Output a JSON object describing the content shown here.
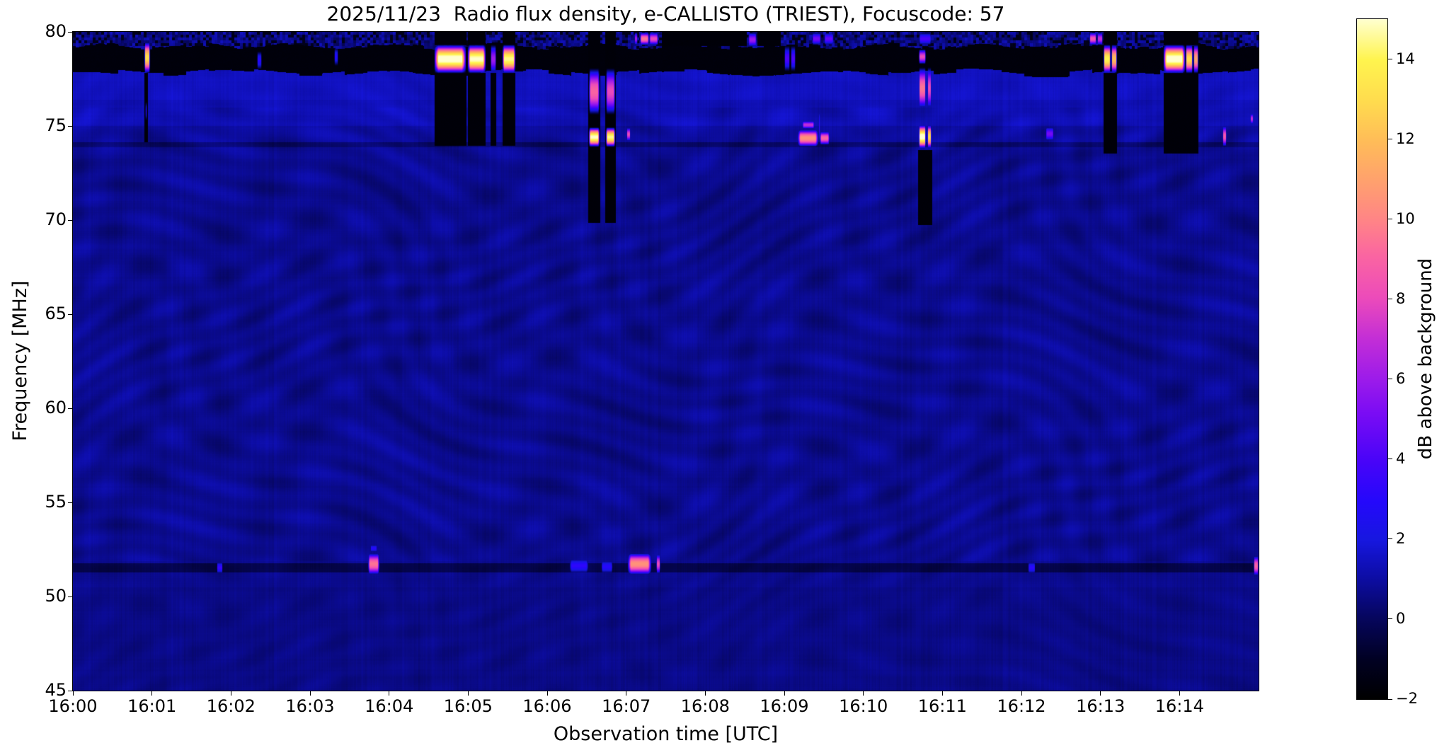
{
  "title": "2025/11/23  Radio flux density, e-CALLISTO (TRIEST), Focuscode: 57",
  "chart_data": {
    "type": "heatmap",
    "title": "2025/11/23  Radio flux density, e-CALLISTO (TRIEST), Focuscode: 57",
    "xlabel": "Observation time [UTC]",
    "ylabel": "Frequency [MHz]",
    "colorbar_label": "dB above background",
    "x_range_utc": [
      "16:00",
      "16:15"
    ],
    "x_range_minutes": [
      0,
      15
    ],
    "freq_range_mhz": [
      45,
      80
    ],
    "value_range_db": [
      -2,
      15
    ],
    "x_ticks": [
      {
        "min": 0,
        "label": "16:00"
      },
      {
        "min": 1,
        "label": "16:01"
      },
      {
        "min": 2,
        "label": "16:02"
      },
      {
        "min": 3,
        "label": "16:03"
      },
      {
        "min": 4,
        "label": "16:04"
      },
      {
        "min": 5,
        "label": "16:05"
      },
      {
        "min": 6,
        "label": "16:06"
      },
      {
        "min": 7,
        "label": "16:07"
      },
      {
        "min": 8,
        "label": "16:08"
      },
      {
        "min": 9,
        "label": "16:09"
      },
      {
        "min": 10,
        "label": "16:10"
      },
      {
        "min": 11,
        "label": "16:11"
      },
      {
        "min": 12,
        "label": "16:12"
      },
      {
        "min": 13,
        "label": "16:13"
      },
      {
        "min": 14,
        "label": "16:14"
      }
    ],
    "y_ticks": [
      {
        "v": 80,
        "label": "80"
      },
      {
        "v": 75,
        "label": "75"
      },
      {
        "v": 70,
        "label": "70"
      },
      {
        "v": 65,
        "label": "65"
      },
      {
        "v": 60,
        "label": "60"
      },
      {
        "v": 55,
        "label": "55"
      },
      {
        "v": 50,
        "label": "50"
      },
      {
        "v": 45,
        "label": "45"
      }
    ],
    "colorbar_ticks": [
      {
        "v": 14,
        "label": "14"
      },
      {
        "v": 12,
        "label": "12"
      },
      {
        "v": 10,
        "label": "10"
      },
      {
        "v": 8,
        "label": "8"
      },
      {
        "v": 6,
        "label": "6"
      },
      {
        "v": 4,
        "label": "4"
      },
      {
        "v": 2,
        "label": "2"
      },
      {
        "v": 0,
        "label": "0"
      },
      {
        "v": -2,
        "label": "−2"
      }
    ],
    "colormap": {
      "name": "gnuplot2-like",
      "stops": [
        [
          0.0,
          "#000000"
        ],
        [
          0.06,
          "#010124"
        ],
        [
          0.12,
          "#06065e"
        ],
        [
          0.18,
          "#0d0da6"
        ],
        [
          0.235,
          "#1717e0"
        ],
        [
          0.29,
          "#2408fb"
        ],
        [
          0.353,
          "#4a04f8"
        ],
        [
          0.42,
          "#7a0cf4"
        ],
        [
          0.47,
          "#9c1bea"
        ],
        [
          0.53,
          "#c32ed6"
        ],
        [
          0.59,
          "#ec4bba"
        ],
        [
          0.65,
          "#fa64a2"
        ],
        [
          0.7,
          "#ff8288"
        ],
        [
          0.76,
          "#ffa06e"
        ],
        [
          0.82,
          "#ffbc58"
        ],
        [
          0.88,
          "#ffdc4e"
        ],
        [
          0.94,
          "#fff44e"
        ],
        [
          1.0,
          "#ffffd0"
        ]
      ]
    },
    "background": {
      "base_db": 0.72,
      "black_band_mhz": [
        77.85,
        79.25
      ],
      "black_band_db": -1.75,
      "top_strip_mhz": [
        79.25,
        80
      ],
      "bright_band_mhz": [
        75.0,
        76.4
      ],
      "bright_band_boost_db": 0.55,
      "upper_bright_mhz": [
        76.4,
        77.85
      ],
      "upper_bright_boost_db": 0.75,
      "lower_bright_mhz": [
        74.15,
        75.0
      ],
      "lower_bright_boost_db": 0.2,
      "dark_line_mhz": [
        51.3,
        51.8
      ],
      "dark_line_drop_db": 1.05,
      "dark_line2_mhz": [
        73.9,
        74.15
      ],
      "dark_line2_drop_db": 0.55,
      "ripple_amp_db": 0.45
    },
    "events": [
      {
        "kind": "gap",
        "t0": 0.905,
        "t1": 0.94,
        "f0": 74.2,
        "f1": 77.8
      },
      {
        "kind": "gap",
        "t0": 4.58,
        "t1": 4.97,
        "f0": 74.0,
        "f1": 77.8
      },
      {
        "kind": "gap",
        "t0": 4.58,
        "t1": 4.97,
        "f0": 79.35,
        "f1": 80
      },
      {
        "kind": "gap",
        "t0": 5.0,
        "t1": 5.21,
        "f0": 74.0,
        "f1": 77.8
      },
      {
        "kind": "gap",
        "t0": 5.0,
        "t1": 5.21,
        "f0": 79.35,
        "f1": 80
      },
      {
        "kind": "gap",
        "t0": 5.28,
        "t1": 5.35,
        "f0": 74.0,
        "f1": 77.8
      },
      {
        "kind": "gap",
        "t0": 5.44,
        "t1": 5.59,
        "f0": 74.0,
        "f1": 77.8
      },
      {
        "kind": "gap",
        "t0": 5.44,
        "t1": 5.59,
        "f0": 79.35,
        "f1": 80
      },
      {
        "kind": "gap",
        "t0": 6.52,
        "t1": 6.66,
        "f0": 69.9,
        "f1": 80
      },
      {
        "kind": "gap",
        "t0": 6.73,
        "t1": 6.86,
        "f0": 69.9,
        "f1": 80
      },
      {
        "kind": "gap",
        "t0": 7.45,
        "t1": 8.52,
        "f0": 79.3,
        "f1": 80
      },
      {
        "kind": "gap",
        "t0": 8.66,
        "t1": 8.95,
        "f0": 79.3,
        "f1": 80
      },
      {
        "kind": "gap",
        "t0": 10.69,
        "t1": 10.86,
        "f0": 69.8,
        "f1": 73.7
      },
      {
        "kind": "gap",
        "t0": 13.04,
        "t1": 13.2,
        "f0": 73.6,
        "f1": 77.8
      },
      {
        "kind": "gap",
        "t0": 13.04,
        "t1": 13.2,
        "f0": 79.35,
        "f1": 80
      },
      {
        "kind": "gap",
        "t0": 13.8,
        "t1": 14.23,
        "f0": 73.6,
        "f1": 77.8
      },
      {
        "kind": "gap",
        "t0": 13.8,
        "t1": 14.23,
        "f0": 79.35,
        "f1": 80
      },
      {
        "kind": "blob",
        "t0": 0.9,
        "t1": 0.97,
        "f0": 77.8,
        "f1": 79.5,
        "peak": 13
      },
      {
        "kind": "blob",
        "t0": 0.915,
        "t1": 0.935,
        "f0": 75.3,
        "f1": 76.3,
        "peak": 3.2
      },
      {
        "kind": "blob",
        "t0": 2.33,
        "t1": 2.38,
        "f0": 78.0,
        "f1": 79.0,
        "peak": 3
      },
      {
        "kind": "blob",
        "t0": 3.3,
        "t1": 3.35,
        "f0": 78.2,
        "f1": 79.2,
        "peak": 2.8
      },
      {
        "kind": "blob",
        "t0": 4.58,
        "t1": 4.96,
        "f0": 77.8,
        "f1": 79.35,
        "peak": 15.5
      },
      {
        "kind": "blob",
        "t0": 5.0,
        "t1": 5.21,
        "f0": 77.8,
        "f1": 79.35,
        "peak": 15
      },
      {
        "kind": "blob",
        "t0": 5.28,
        "t1": 5.35,
        "f0": 77.8,
        "f1": 79.35,
        "peak": 6
      },
      {
        "kind": "blob",
        "t0": 5.44,
        "t1": 5.59,
        "f0": 77.8,
        "f1": 79.35,
        "peak": 14.5
      },
      {
        "kind": "blob",
        "t0": 6.53,
        "t1": 6.65,
        "f0": 75.6,
        "f1": 78.1,
        "peak": 9
      },
      {
        "kind": "blob",
        "t0": 6.53,
        "t1": 6.65,
        "f0": 73.9,
        "f1": 74.95,
        "peak": 15
      },
      {
        "kind": "blob",
        "t0": 6.74,
        "t1": 6.85,
        "f0": 75.6,
        "f1": 78.1,
        "peak": 8
      },
      {
        "kind": "blob",
        "t0": 6.74,
        "t1": 6.85,
        "f0": 73.9,
        "f1": 74.95,
        "peak": 14.5
      },
      {
        "kind": "blob",
        "t0": 7.0,
        "t1": 7.05,
        "f0": 74.2,
        "f1": 74.95,
        "peak": 8
      },
      {
        "kind": "blob",
        "t0": 7.1,
        "t1": 7.14,
        "f0": 79.3,
        "f1": 80,
        "peak": 6
      },
      {
        "kind": "blob",
        "t0": 7.17,
        "t1": 7.28,
        "f0": 79.3,
        "f1": 80,
        "peak": 9.5
      },
      {
        "kind": "blob",
        "t0": 7.29,
        "t1": 7.4,
        "f0": 79.3,
        "f1": 80,
        "peak": 8
      },
      {
        "kind": "blob",
        "t0": 8.54,
        "t1": 8.64,
        "f0": 79.2,
        "f1": 80,
        "peak": 6
      },
      {
        "kind": "blob",
        "t0": 9.0,
        "t1": 9.06,
        "f0": 77.9,
        "f1": 79.3,
        "peak": 4
      },
      {
        "kind": "blob",
        "t0": 9.08,
        "t1": 9.13,
        "f0": 77.9,
        "f1": 79.3,
        "peak": 4
      },
      {
        "kind": "blob",
        "t0": 9.17,
        "t1": 9.42,
        "f0": 73.9,
        "f1": 74.85,
        "peak": 10.5
      },
      {
        "kind": "blob",
        "t0": 9.22,
        "t1": 9.38,
        "f0": 74.85,
        "f1": 75.3,
        "peak": 7
      },
      {
        "kind": "blob",
        "t0": 9.43,
        "t1": 9.45,
        "f0": 74.0,
        "f1": 76.0,
        "peak": 3.5
      },
      {
        "kind": "blob",
        "t0": 9.45,
        "t1": 9.56,
        "f0": 74.0,
        "f1": 74.75,
        "peak": 9
      },
      {
        "kind": "blob",
        "t0": 9.35,
        "t1": 9.46,
        "f0": 79.3,
        "f1": 80,
        "peak": 5
      },
      {
        "kind": "blob",
        "t0": 9.5,
        "t1": 9.62,
        "f0": 79.3,
        "f1": 80,
        "peak": 4.5
      },
      {
        "kind": "blob",
        "t0": 10.7,
        "t1": 10.78,
        "f0": 75.9,
        "f1": 78.15,
        "peak": 9.5
      },
      {
        "kind": "blob",
        "t0": 10.7,
        "t1": 10.78,
        "f0": 73.8,
        "f1": 75.1,
        "peak": 15.5
      },
      {
        "kind": "blob",
        "t0": 10.7,
        "t1": 10.78,
        "f0": 78.3,
        "f1": 79.1,
        "peak": 8
      },
      {
        "kind": "blob",
        "t0": 10.81,
        "t1": 10.85,
        "f0": 75.9,
        "f1": 78.15,
        "peak": 8
      },
      {
        "kind": "blob",
        "t0": 10.81,
        "t1": 10.85,
        "f0": 73.8,
        "f1": 75.1,
        "peak": 13
      },
      {
        "kind": "blob",
        "t0": 10.7,
        "t1": 10.85,
        "f0": 79.3,
        "f1": 80,
        "peak": 4
      },
      {
        "kind": "blob",
        "t0": 12.3,
        "t1": 12.4,
        "f0": 74.2,
        "f1": 75.0,
        "peak": 5
      },
      {
        "kind": "blob",
        "t0": 12.86,
        "t1": 12.94,
        "f0": 79.3,
        "f1": 80,
        "peak": 8.5
      },
      {
        "kind": "blob",
        "t0": 12.96,
        "t1": 13.02,
        "f0": 79.3,
        "f1": 80,
        "peak": 7
      },
      {
        "kind": "blob",
        "t0": 13.04,
        "t1": 13.12,
        "f0": 77.8,
        "f1": 79.35,
        "peak": 14
      },
      {
        "kind": "blob",
        "t0": 13.14,
        "t1": 13.2,
        "f0": 77.8,
        "f1": 79.35,
        "peak": 12
      },
      {
        "kind": "blob",
        "t0": 13.8,
        "t1": 14.06,
        "f0": 77.8,
        "f1": 79.35,
        "peak": 15.5
      },
      {
        "kind": "blob",
        "t0": 14.08,
        "t1": 14.16,
        "f0": 77.8,
        "f1": 79.35,
        "peak": 13
      },
      {
        "kind": "blob",
        "t0": 14.18,
        "t1": 14.23,
        "f0": 77.8,
        "f1": 79.35,
        "peak": 11
      },
      {
        "kind": "blob",
        "t0": 14.54,
        "t1": 14.59,
        "f0": 73.9,
        "f1": 75.05,
        "peak": 8.5
      },
      {
        "kind": "blob",
        "t0": 14.89,
        "t1": 14.93,
        "f0": 75.1,
        "f1": 75.7,
        "peak": 7
      },
      {
        "kind": "blob",
        "t0": 1.82,
        "t1": 1.89,
        "f0": 51.2,
        "f1": 51.9,
        "peak": 3.5
      },
      {
        "kind": "blob",
        "t0": 3.73,
        "t1": 3.87,
        "f0": 51.15,
        "f1": 52.35,
        "peak": 9.5
      },
      {
        "kind": "blob",
        "t0": 3.76,
        "t1": 3.84,
        "f0": 52.35,
        "f1": 52.8,
        "peak": 3
      },
      {
        "kind": "blob",
        "t0": 6.28,
        "t1": 6.52,
        "f0": 51.2,
        "f1": 52.1,
        "peak": 3.2
      },
      {
        "kind": "blob",
        "t0": 6.68,
        "t1": 6.82,
        "f0": 51.2,
        "f1": 52.0,
        "peak": 3
      },
      {
        "kind": "blob",
        "t0": 7.02,
        "t1": 7.31,
        "f0": 51.15,
        "f1": 52.35,
        "peak": 10.5
      },
      {
        "kind": "blob",
        "t0": 7.38,
        "t1": 7.42,
        "f0": 51.2,
        "f1": 52.3,
        "peak": 8
      },
      {
        "kind": "blob",
        "t0": 12.08,
        "t1": 12.17,
        "f0": 51.2,
        "f1": 51.9,
        "peak": 3.2
      },
      {
        "kind": "blob",
        "t0": 14.94,
        "t1": 14.99,
        "f0": 51.1,
        "f1": 52.2,
        "peak": 9
      }
    ]
  }
}
